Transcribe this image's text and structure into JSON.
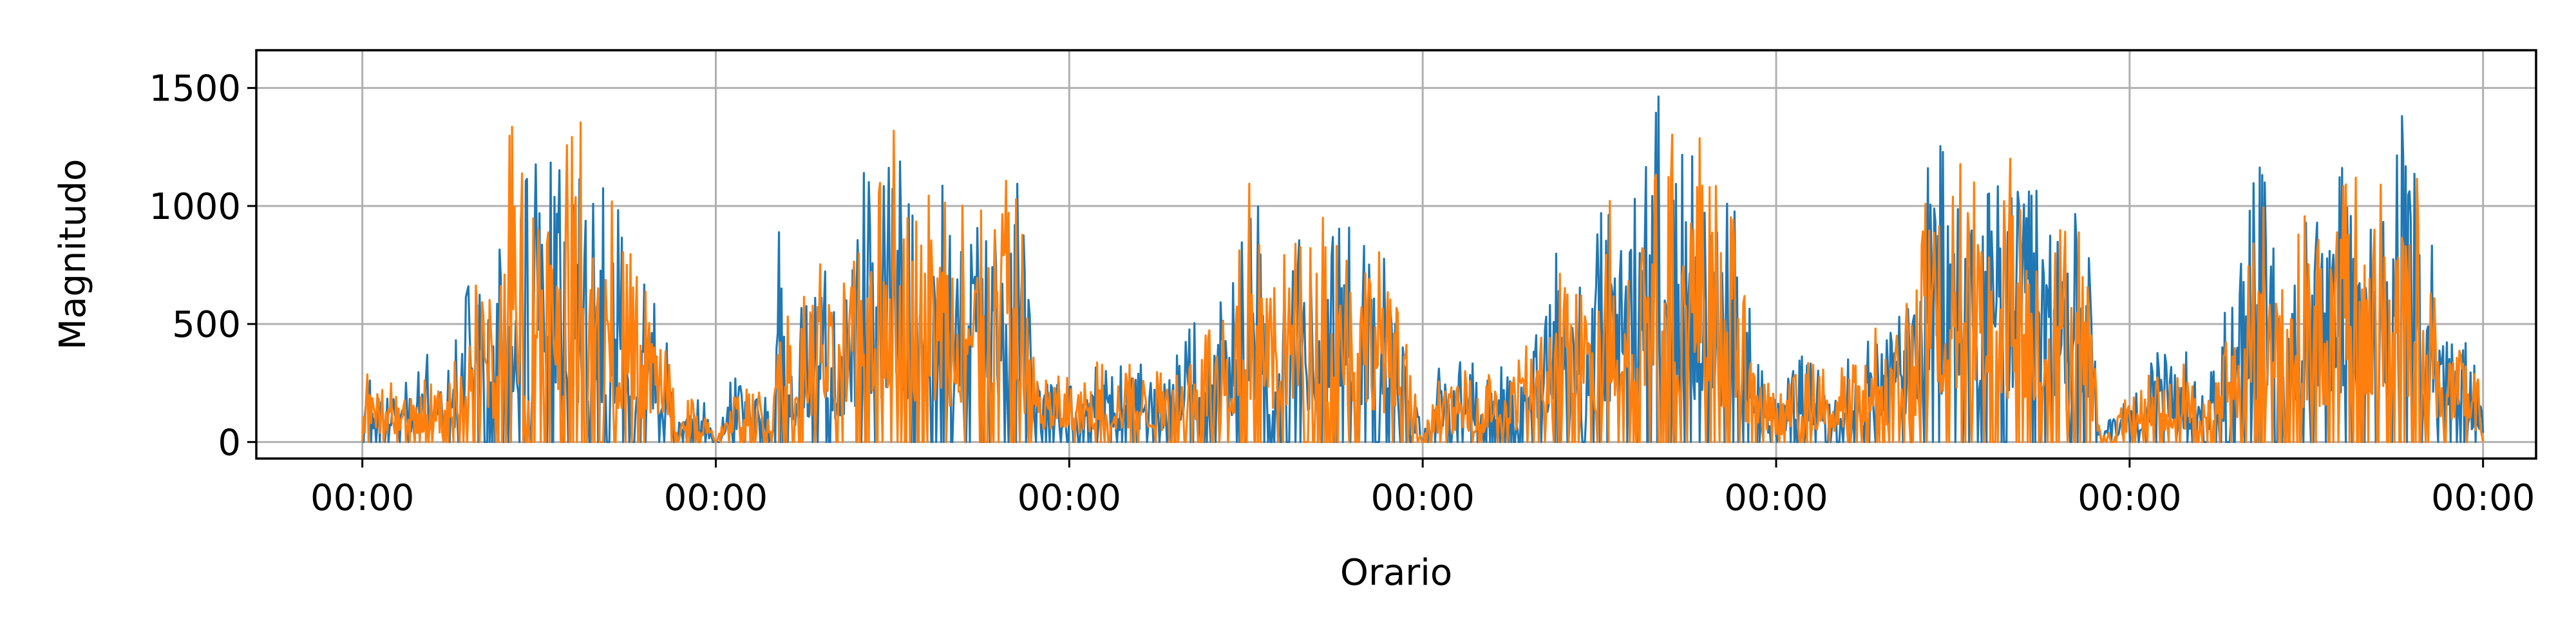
{
  "chart_data": {
    "type": "line",
    "title": "",
    "xlabel": "Orario",
    "ylabel": "Magnitudo",
    "xlim_days": [
      -0.3,
      6.15
    ],
    "ylim": [
      -70,
      1660
    ],
    "x_ticks": [
      {
        "day": 0,
        "label": "00:00"
      },
      {
        "day": 1,
        "label": "00:00"
      },
      {
        "day": 2,
        "label": "00:00"
      },
      {
        "day": 3,
        "label": "00:00"
      },
      {
        "day": 4,
        "label": "00:00"
      },
      {
        "day": 5,
        "label": "00:00"
      },
      {
        "day": 6,
        "label": "00:00"
      }
    ],
    "y_ticks": [
      0,
      500,
      1000,
      1500
    ],
    "grid": true,
    "legend": "none",
    "series": [
      {
        "color": "#1f77b4",
        "envelope": [
          [
            0.0,
            0
          ],
          [
            0.01,
            330
          ],
          [
            0.04,
            250
          ],
          [
            0.08,
            290
          ],
          [
            0.12,
            250
          ],
          [
            0.15,
            260
          ],
          [
            0.18,
            380
          ],
          [
            0.22,
            260
          ],
          [
            0.26,
            400
          ],
          [
            0.3,
            660
          ],
          [
            0.34,
            850
          ],
          [
            0.38,
            700
          ],
          [
            0.42,
            1260
          ],
          [
            0.46,
            1100
          ],
          [
            0.5,
            1200
          ],
          [
            0.54,
            1350
          ],
          [
            0.58,
            900
          ],
          [
            0.62,
            1150
          ],
          [
            0.66,
            1160
          ],
          [
            0.7,
            1000
          ],
          [
            0.74,
            970
          ],
          [
            0.78,
            720
          ],
          [
            0.82,
            600
          ],
          [
            0.86,
            500
          ],
          [
            0.89,
            50
          ],
          [
            0.92,
            200
          ],
          [
            0.96,
            200
          ],
          [
            1.0,
            0
          ],
          [
            1.04,
            250
          ],
          [
            1.08,
            300
          ],
          [
            1.12,
            250
          ],
          [
            1.16,
            230
          ],
          [
            1.18,
            930
          ],
          [
            1.22,
            400
          ],
          [
            1.26,
            700
          ],
          [
            1.3,
            760
          ],
          [
            1.34,
            600
          ],
          [
            1.38,
            800
          ],
          [
            1.42,
            1150
          ],
          [
            1.46,
            1000
          ],
          [
            1.5,
            1220
          ],
          [
            1.54,
            1160
          ],
          [
            1.58,
            1080
          ],
          [
            1.62,
            1160
          ],
          [
            1.66,
            1020
          ],
          [
            1.7,
            940
          ],
          [
            1.74,
            1070
          ],
          [
            1.78,
            980
          ],
          [
            1.82,
            1160
          ],
          [
            1.86,
            1080
          ],
          [
            1.89,
            500
          ],
          [
            1.92,
            260
          ],
          [
            1.96,
            300
          ],
          [
            2.0,
            290
          ],
          [
            2.04,
            280
          ],
          [
            2.08,
            370
          ],
          [
            2.12,
            340
          ],
          [
            2.16,
            310
          ],
          [
            2.2,
            330
          ],
          [
            2.24,
            300
          ],
          [
            2.28,
            280
          ],
          [
            2.32,
            420
          ],
          [
            2.36,
            640
          ],
          [
            2.4,
            620
          ],
          [
            2.44,
            580
          ],
          [
            2.48,
            900
          ],
          [
            2.52,
            1160
          ],
          [
            2.56,
            700
          ],
          [
            2.6,
            800
          ],
          [
            2.64,
            860
          ],
          [
            2.68,
            840
          ],
          [
            2.72,
            1080
          ],
          [
            2.76,
            1030
          ],
          [
            2.8,
            1100
          ],
          [
            2.84,
            940
          ],
          [
            2.88,
            1050
          ],
          [
            2.92,
            600
          ],
          [
            2.96,
            400
          ],
          [
            3.0,
            0
          ],
          [
            3.04,
            320
          ],
          [
            3.08,
            260
          ],
          [
            3.12,
            380
          ],
          [
            3.16,
            290
          ],
          [
            3.2,
            300
          ],
          [
            3.24,
            330
          ],
          [
            3.28,
            360
          ],
          [
            3.32,
            500
          ],
          [
            3.36,
            780
          ],
          [
            3.4,
            820
          ],
          [
            3.44,
            640
          ],
          [
            3.48,
            760
          ],
          [
            3.52,
            1100
          ],
          [
            3.56,
            960
          ],
          [
            3.6,
            1030
          ],
          [
            3.64,
            1200
          ],
          [
            3.68,
            1590
          ],
          [
            3.72,
            1220
          ],
          [
            3.76,
            1210
          ],
          [
            3.8,
            1220
          ],
          [
            3.84,
            1020
          ],
          [
            3.88,
            1000
          ],
          [
            3.92,
            600
          ],
          [
            3.96,
            300
          ],
          [
            4.0,
            200
          ],
          [
            4.04,
            280
          ],
          [
            4.08,
            380
          ],
          [
            4.12,
            360
          ],
          [
            4.16,
            300
          ],
          [
            4.2,
            350
          ],
          [
            4.24,
            350
          ],
          [
            4.28,
            500
          ],
          [
            4.32,
            540
          ],
          [
            4.36,
            680
          ],
          [
            4.4,
            660
          ],
          [
            4.44,
            1340
          ],
          [
            4.48,
            1200
          ],
          [
            4.52,
            1150
          ],
          [
            4.56,
            1040
          ],
          [
            4.6,
            1050
          ],
          [
            4.64,
            1100
          ],
          [
            4.68,
            1220
          ],
          [
            4.72,
            1040
          ],
          [
            4.76,
            1100
          ],
          [
            4.8,
            960
          ],
          [
            4.84,
            960
          ],
          [
            4.88,
            1000
          ],
          [
            4.92,
            0
          ],
          [
            4.96,
            170
          ],
          [
            5.0,
            220
          ],
          [
            5.04,
            280
          ],
          [
            5.08,
            380
          ],
          [
            5.12,
            360
          ],
          [
            5.16,
            380
          ],
          [
            5.2,
            280
          ],
          [
            5.24,
            300
          ],
          [
            5.28,
            720
          ],
          [
            5.32,
            760
          ],
          [
            5.36,
            1200
          ],
          [
            5.4,
            1020
          ],
          [
            5.44,
            900
          ],
          [
            5.48,
            920
          ],
          [
            5.52,
            940
          ],
          [
            5.56,
            900
          ],
          [
            5.6,
            1160
          ],
          [
            5.64,
            1200
          ],
          [
            5.68,
            1130
          ],
          [
            5.72,
            1150
          ],
          [
            5.76,
            1460
          ],
          [
            5.8,
            1160
          ],
          [
            5.84,
            1000
          ],
          [
            5.88,
            560
          ],
          [
            5.92,
            480
          ],
          [
            5.96,
            400
          ],
          [
            6.0,
            200
          ]
        ]
      },
      {
        "color": "#ff7f0e",
        "envelope": [
          [
            0.0,
            0
          ],
          [
            0.01,
            300
          ],
          [
            0.04,
            200
          ],
          [
            0.08,
            250
          ],
          [
            0.12,
            210
          ],
          [
            0.15,
            200
          ],
          [
            0.18,
            320
          ],
          [
            0.22,
            230
          ],
          [
            0.26,
            380
          ],
          [
            0.3,
            600
          ],
          [
            0.34,
            720
          ],
          [
            0.38,
            650
          ],
          [
            0.42,
            1360
          ],
          [
            0.46,
            1080
          ],
          [
            0.5,
            1300
          ],
          [
            0.54,
            1180
          ],
          [
            0.58,
            1260
          ],
          [
            0.62,
            1360
          ],
          [
            0.66,
            1100
          ],
          [
            0.7,
            1040
          ],
          [
            0.74,
            900
          ],
          [
            0.78,
            680
          ],
          [
            0.82,
            600
          ],
          [
            0.86,
            540
          ],
          [
            0.89,
            40
          ],
          [
            0.92,
            210
          ],
          [
            0.96,
            190
          ],
          [
            1.0,
            0
          ],
          [
            1.04,
            230
          ],
          [
            1.08,
            260
          ],
          [
            1.12,
            210
          ],
          [
            1.16,
            200
          ],
          [
            1.18,
            750
          ],
          [
            1.22,
            380
          ],
          [
            1.26,
            700
          ],
          [
            1.3,
            760
          ],
          [
            1.34,
            560
          ],
          [
            1.38,
            760
          ],
          [
            1.42,
            1100
          ],
          [
            1.46,
            1240
          ],
          [
            1.5,
            1330
          ],
          [
            1.54,
            1200
          ],
          [
            1.58,
            1100
          ],
          [
            1.62,
            1000
          ],
          [
            1.66,
            1020
          ],
          [
            1.7,
            1000
          ],
          [
            1.74,
            960
          ],
          [
            1.78,
            1040
          ],
          [
            1.82,
            1110
          ],
          [
            1.86,
            1000
          ],
          [
            1.89,
            480
          ],
          [
            1.92,
            250
          ],
          [
            1.96,
            280
          ],
          [
            2.0,
            270
          ],
          [
            2.04,
            240
          ],
          [
            2.08,
            340
          ],
          [
            2.12,
            300
          ],
          [
            2.16,
            330
          ],
          [
            2.2,
            320
          ],
          [
            2.24,
            300
          ],
          [
            2.28,
            280
          ],
          [
            2.32,
            400
          ],
          [
            2.36,
            520
          ],
          [
            2.4,
            600
          ],
          [
            2.44,
            500
          ],
          [
            2.48,
            800
          ],
          [
            2.52,
            1200
          ],
          [
            2.56,
            680
          ],
          [
            2.6,
            780
          ],
          [
            2.64,
            840
          ],
          [
            2.68,
            800
          ],
          [
            2.72,
            1160
          ],
          [
            2.76,
            1000
          ],
          [
            2.8,
            1000
          ],
          [
            2.84,
            920
          ],
          [
            2.88,
            920
          ],
          [
            2.92,
            600
          ],
          [
            2.96,
            380
          ],
          [
            3.0,
            0
          ],
          [
            3.04,
            260
          ],
          [
            3.08,
            230
          ],
          [
            3.12,
            300
          ],
          [
            3.16,
            270
          ],
          [
            3.2,
            290
          ],
          [
            3.24,
            290
          ],
          [
            3.28,
            360
          ],
          [
            3.32,
            500
          ],
          [
            3.36,
            600
          ],
          [
            3.4,
            760
          ],
          [
            3.44,
            600
          ],
          [
            3.48,
            700
          ],
          [
            3.52,
            1040
          ],
          [
            3.56,
            960
          ],
          [
            3.6,
            1000
          ],
          [
            3.64,
            1240
          ],
          [
            3.68,
            1380
          ],
          [
            3.72,
            1260
          ],
          [
            3.76,
            1240
          ],
          [
            3.8,
            1320
          ],
          [
            3.84,
            1000
          ],
          [
            3.88,
            940
          ],
          [
            3.92,
            520
          ],
          [
            3.96,
            300
          ],
          [
            4.0,
            180
          ],
          [
            4.04,
            250
          ],
          [
            4.08,
            340
          ],
          [
            4.12,
            320
          ],
          [
            4.16,
            280
          ],
          [
            4.2,
            330
          ],
          [
            4.24,
            320
          ],
          [
            4.28,
            480
          ],
          [
            4.32,
            500
          ],
          [
            4.36,
            680
          ],
          [
            4.4,
            640
          ],
          [
            4.44,
            1300
          ],
          [
            4.48,
            1160
          ],
          [
            4.52,
            1180
          ],
          [
            4.56,
            1100
          ],
          [
            4.6,
            1060
          ],
          [
            4.64,
            1200
          ],
          [
            4.68,
            1200
          ],
          [
            4.72,
            1120
          ],
          [
            4.76,
            1000
          ],
          [
            4.8,
            900
          ],
          [
            4.84,
            880
          ],
          [
            4.88,
            900
          ],
          [
            4.92,
            0
          ],
          [
            4.96,
            150
          ],
          [
            5.0,
            190
          ],
          [
            5.04,
            260
          ],
          [
            5.08,
            320
          ],
          [
            5.12,
            320
          ],
          [
            5.16,
            330
          ],
          [
            5.2,
            260
          ],
          [
            5.24,
            280
          ],
          [
            5.28,
            620
          ],
          [
            5.32,
            700
          ],
          [
            5.36,
            1060
          ],
          [
            5.4,
            920
          ],
          [
            5.44,
            860
          ],
          [
            5.48,
            880
          ],
          [
            5.52,
            1080
          ],
          [
            5.56,
            860
          ],
          [
            5.6,
            1080
          ],
          [
            5.64,
            1120
          ],
          [
            5.68,
            1060
          ],
          [
            5.72,
            1100
          ],
          [
            5.76,
            1380
          ],
          [
            5.8,
            1180
          ],
          [
            5.84,
            980
          ],
          [
            5.88,
            500
          ],
          [
            5.92,
            440
          ],
          [
            5.96,
            420
          ],
          [
            6.0,
            180
          ]
        ]
      }
    ]
  }
}
